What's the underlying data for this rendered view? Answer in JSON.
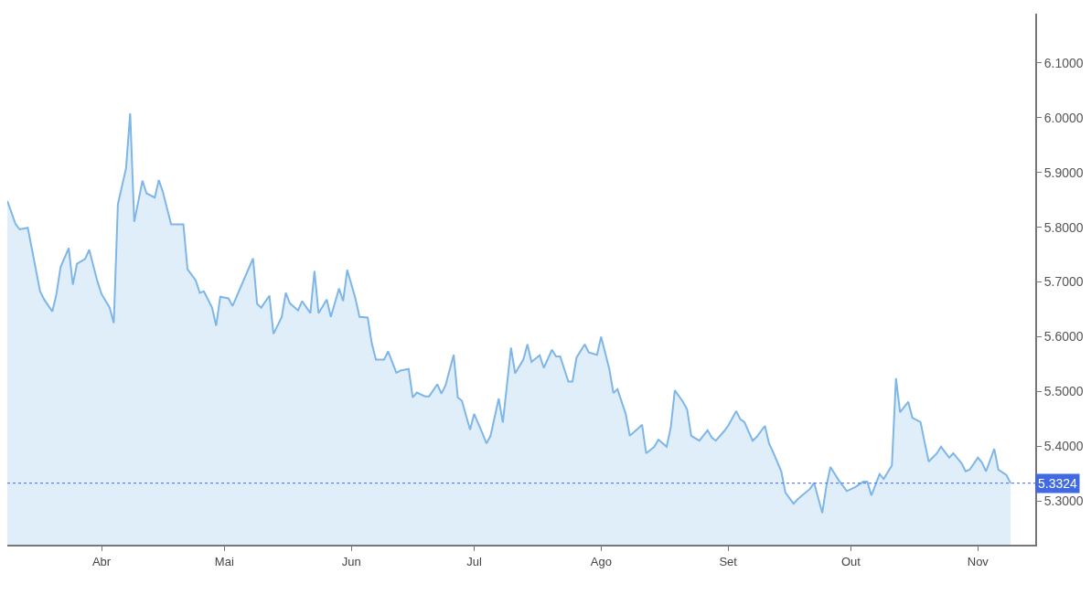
{
  "chart_data": {
    "type": "area",
    "x": [
      "--03-09",
      "--03-11",
      "--03-12",
      "--03-14",
      "--03-17",
      "--03-18",
      "--03-20",
      "--03-21",
      "--03-22",
      "--03-24",
      "--03-25",
      "--03-26",
      "--03-28",
      "--03-29",
      "--03-31",
      "--04-01",
      "--04-03",
      "--04-04",
      "--04-05",
      "--04-07",
      "--04-08",
      "--04-09",
      "--04-11",
      "--04-12",
      "--04-14",
      "--04-15",
      "--04-16",
      "--04-18",
      "--04-21",
      "--04-22",
      "--04-24",
      "--04-25",
      "--04-26",
      "--04-28",
      "--04-29",
      "--04-30",
      "--05-02",
      "--05-03",
      "--05-08",
      "--05-09",
      "--05-10",
      "--05-12",
      "--05-13",
      "--05-15",
      "--05-16",
      "--05-17",
      "--05-19",
      "--05-20",
      "--05-22",
      "--05-23",
      "--05-24",
      "--05-26",
      "--05-27",
      "--05-29",
      "--05-30",
      "--05-31",
      "--06-02",
      "--06-03",
      "--06-05",
      "--06-06",
      "--06-07",
      "--06-09",
      "--06-10",
      "--06-12",
      "--06-13",
      "--06-15",
      "--06-16",
      "--06-17",
      "--06-19",
      "--06-20",
      "--06-22",
      "--06-23",
      "--06-24",
      "--06-26",
      "--06-27",
      "--06-28",
      "--06-30",
      "--07-01",
      "--07-03",
      "--07-04",
      "--07-05",
      "--07-07",
      "--07-08",
      "--07-10",
      "--07-11",
      "--07-13",
      "--07-14",
      "--07-15",
      "--07-17",
      "--07-18",
      "--07-20",
      "--07-21",
      "--07-22",
      "--07-24",
      "--07-25",
      "--07-26",
      "--07-28",
      "--07-29",
      "--07-31",
      "--08-01",
      "--08-03",
      "--08-04",
      "--08-05",
      "--08-07",
      "--08-08",
      "--08-10",
      "--08-11",
      "--08-12",
      "--08-14",
      "--08-15",
      "--08-17",
      "--08-18",
      "--08-19",
      "--08-21",
      "--08-22",
      "--08-23",
      "--08-25",
      "--08-27",
      "--08-28",
      "--08-29",
      "--08-31",
      "--09-01",
      "--09-03",
      "--09-04",
      "--09-05",
      "--09-07",
      "--09-08",
      "--09-10",
      "--09-11",
      "--09-12",
      "--09-14",
      "--09-15",
      "--09-17",
      "--09-18",
      "--09-21",
      "--09-22",
      "--09-24",
      "--09-25",
      "--09-26",
      "--09-28",
      "--09-30",
      "--10-02",
      "--10-04",
      "--10-05",
      "--10-06",
      "--10-08",
      "--10-09",
      "--10-11",
      "--10-12",
      "--10-13",
      "--10-15",
      "--10-16",
      "--10-18",
      "--10-19",
      "--10-20",
      "--10-22",
      "--10-23",
      "--10-25",
      "--10-26",
      "--10-28",
      "--10-29",
      "--10-30",
      "--11-01",
      "--11-02",
      "--11-03",
      "--11-05",
      "--11-06",
      "--11-08",
      "--11-09"
    ],
    "series": [
      {
        "color": "#7eb6e8",
        "values": [
          5.848,
          5.806,
          5.796,
          5.799,
          5.683,
          5.668,
          5.646,
          5.678,
          5.727,
          5.762,
          5.695,
          5.733,
          5.742,
          5.759,
          5.701,
          5.678,
          5.653,
          5.625,
          5.842,
          5.908,
          6.008,
          5.81,
          5.885,
          5.862,
          5.854,
          5.886,
          5.864,
          5.805,
          5.805,
          5.723,
          5.703,
          5.68,
          5.683,
          5.653,
          5.62,
          5.673,
          5.67,
          5.656,
          5.743,
          5.66,
          5.653,
          5.675,
          5.605,
          5.636,
          5.68,
          5.661,
          5.648,
          5.665,
          5.643,
          5.72,
          5.643,
          5.668,
          5.636,
          5.688,
          5.665,
          5.722,
          5.67,
          5.636,
          5.635,
          5.588,
          5.558,
          5.558,
          5.573,
          5.534,
          5.538,
          5.541,
          5.489,
          5.498,
          5.491,
          5.491,
          5.513,
          5.496,
          5.511,
          5.567,
          5.489,
          5.483,
          5.43,
          5.459,
          5.424,
          5.405,
          5.419,
          5.487,
          5.443,
          5.58,
          5.533,
          5.558,
          5.586,
          5.554,
          5.566,
          5.543,
          5.576,
          5.564,
          5.564,
          5.518,
          5.518,
          5.562,
          5.586,
          5.571,
          5.567,
          5.6,
          5.541,
          5.497,
          5.504,
          5.459,
          5.419,
          5.432,
          5.439,
          5.387,
          5.399,
          5.412,
          5.399,
          5.434,
          5.502,
          5.481,
          5.467,
          5.419,
          5.41,
          5.429,
          5.416,
          5.41,
          5.427,
          5.437,
          5.464,
          5.449,
          5.444,
          5.41,
          5.417,
          5.437,
          5.405,
          5.389,
          5.354,
          5.315,
          5.295,
          5.303,
          5.322,
          5.333,
          5.278,
          5.327,
          5.362,
          5.338,
          5.318,
          5.325,
          5.335,
          5.335,
          5.31,
          5.349,
          5.34,
          5.365,
          5.524,
          5.462,
          5.481,
          5.452,
          5.444,
          5.407,
          5.372,
          5.387,
          5.399,
          5.379,
          5.387,
          5.369,
          5.354,
          5.357,
          5.379,
          5.37,
          5.354,
          5.395,
          5.357,
          5.347,
          5.332
        ]
      }
    ],
    "xlim": [
      "--03-09",
      "--11-15"
    ],
    "xticks": [
      {
        "value": "--04-01",
        "label": "Abr"
      },
      {
        "value": "--05-01",
        "label": "Mai"
      },
      {
        "value": "--06-01",
        "label": "Jun"
      },
      {
        "value": "--07-01",
        "label": "Jul"
      },
      {
        "value": "--08-01",
        "label": "Ago"
      },
      {
        "value": "--09-01",
        "label": "Set"
      },
      {
        "value": "--10-01",
        "label": "Out"
      },
      {
        "value": "--11-01",
        "label": "Nov"
      }
    ],
    "ylim": [
      5.22,
      6.19
    ],
    "yticks": [
      {
        "value": 5.3,
        "label": "5.3000"
      },
      {
        "value": 5.4,
        "label": "5.4000"
      },
      {
        "value": 5.5,
        "label": "5.5000"
      },
      {
        "value": 5.6,
        "label": "5.6000"
      },
      {
        "value": 5.7,
        "label": "5.7000"
      },
      {
        "value": 5.8,
        "label": "5.8000"
      },
      {
        "value": 5.9,
        "label": "5.9000"
      },
      {
        "value": 6.0,
        "label": "6.0000"
      },
      {
        "value": 6.1,
        "label": "6.1000"
      }
    ],
    "ref_lines": [
      {
        "axis": "y",
        "value": 5.3324,
        "label": "5.3324",
        "color": "#4169e1",
        "line_style": "dotted"
      }
    ],
    "marker": "none",
    "line_style": "solid"
  }
}
